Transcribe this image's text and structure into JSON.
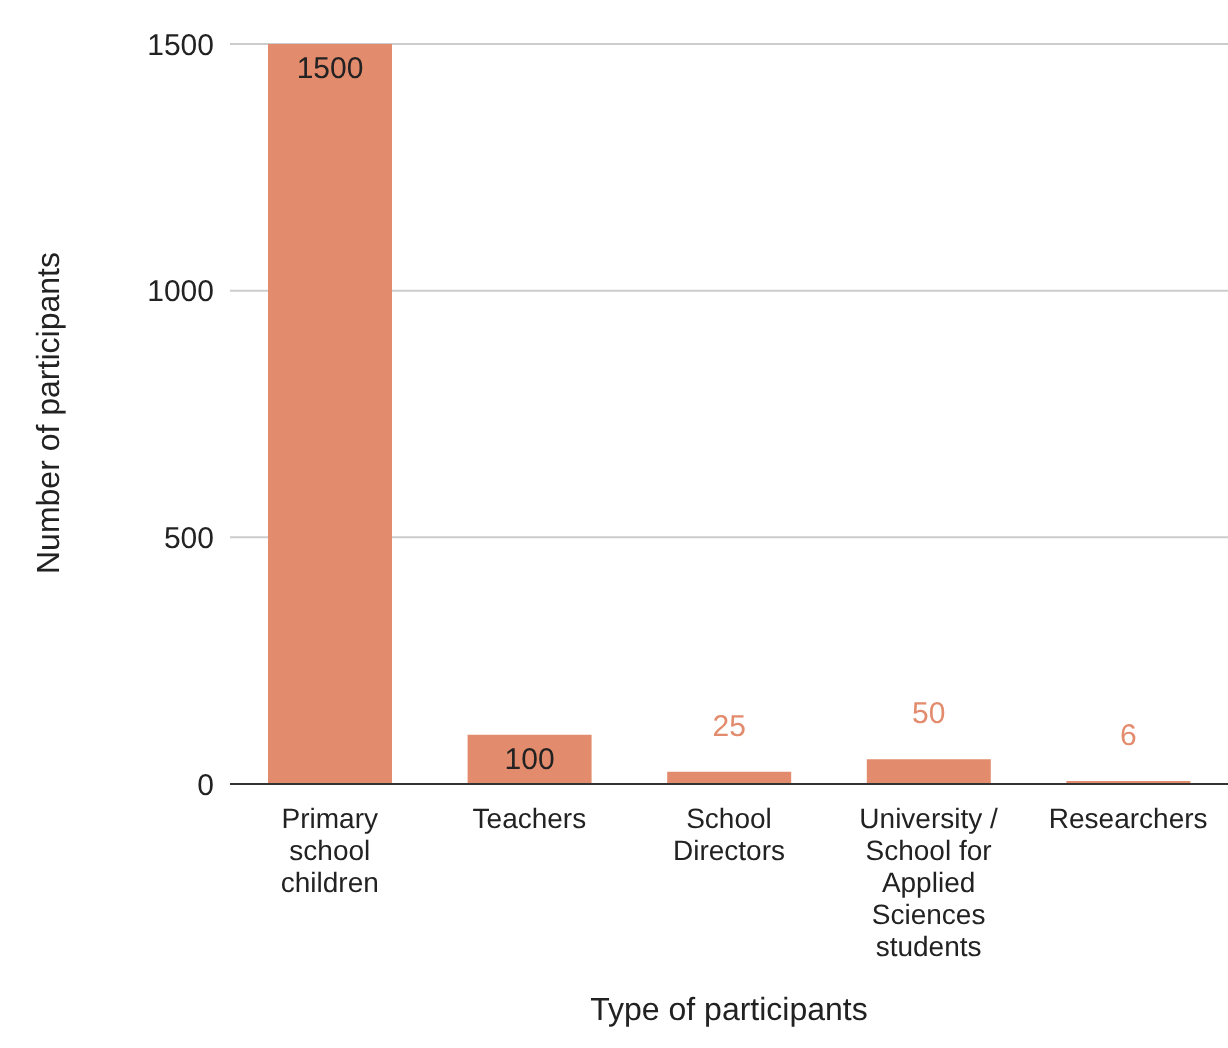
{
  "chart_data": {
    "type": "bar",
    "xlabel": "Type of participants",
    "ylabel": "Number of participants",
    "categories": [
      "Primary school children",
      "Teachers",
      "School Directors",
      "University / School for Applied Sciences students",
      "Researchers"
    ],
    "values": [
      1500,
      100,
      25,
      50,
      6
    ],
    "color": "#e38b6d",
    "ylim": [
      0,
      1500
    ],
    "yticks": [
      0,
      500,
      1000,
      1500
    ],
    "grid": "y",
    "data_labels": true
  }
}
